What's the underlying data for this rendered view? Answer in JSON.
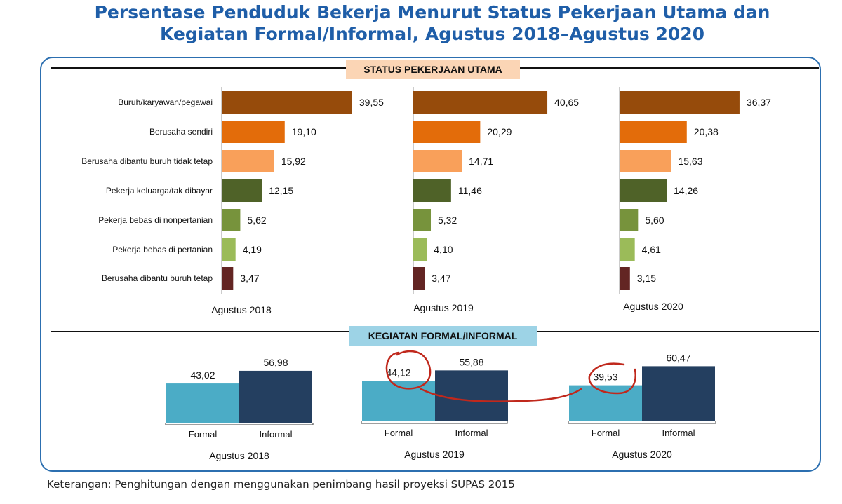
{
  "title": {
    "line1": "Persentase Penduduk Bekerja Menurut Status Pekerjaan Utama dan",
    "line2": "Kegiatan Formal/Informal, Agustus 2018–Agustus 2020"
  },
  "sections": {
    "status_label": "STATUS PEKERJAAN UTAMA",
    "formal_label": "KEGIATAN FORMAL/INFORMAL"
  },
  "caption": "Keterangan: Penghitungan dengan menggunakan penimbang hasil proyeksi SUPAS 2015",
  "colors": {
    "title": "#1f5ea8",
    "frame": "#2c6fb0",
    "status": [
      "#964b0b",
      "#e36c0a",
      "#f9a05a",
      "#4f6228",
      "#77933c",
      "#9bbb59",
      "#632523"
    ],
    "formal": "#4bacc6",
    "informal": "#243f60",
    "annotation": "#c0281c"
  },
  "chart_data": [
    {
      "type": "bar",
      "orientation": "horizontal",
      "title": "STATUS PEKERJAAN UTAMA",
      "categories": [
        "Buruh/karyawan/pegawai",
        "Berusaha sendiri",
        "Berusaha dibantu buruh tidak tetap",
        "Pekerja keluarga/tak dibayar",
        "Pekerja bebas di nonpertanian",
        "Pekerja bebas di pertanian",
        "Berusaha dibantu buruh tetap"
      ],
      "panels": [
        {
          "label": "Agustus 2018",
          "values": [
            39.55,
            19.1,
            15.92,
            12.15,
            5.62,
            4.19,
            3.47
          ],
          "labels": [
            "39,55",
            "19,10",
            "15,92",
            "12,15",
            "5,62",
            "4,19",
            "3,47"
          ]
        },
        {
          "label": "Agustus 2019",
          "values": [
            40.65,
            20.29,
            14.71,
            11.46,
            5.32,
            4.1,
            3.47
          ],
          "labels": [
            "40,65",
            "20,29",
            "14,71",
            "11,46",
            "5,32",
            "4,10",
            "3,47"
          ]
        },
        {
          "label": "Agustus 2020",
          "values": [
            36.37,
            20.38,
            15.63,
            14.26,
            5.6,
            4.61,
            3.15
          ],
          "labels": [
            "36,37",
            "20,38",
            "15,63",
            "14,26",
            "5,60",
            "4,61",
            "3,15"
          ]
        }
      ],
      "unit": "%"
    },
    {
      "type": "bar",
      "orientation": "vertical",
      "title": "KEGIATAN FORMAL/INFORMAL",
      "categories": [
        "Formal",
        "Informal"
      ],
      "panels": [
        {
          "label": "Agustus 2018",
          "values": [
            43.02,
            56.98
          ],
          "labels": [
            "43,02",
            "56,98"
          ]
        },
        {
          "label": "Agustus 2019",
          "values": [
            44.12,
            55.88
          ],
          "labels": [
            "44,12",
            "55,88"
          ]
        },
        {
          "label": "Agustus 2020",
          "values": [
            39.53,
            60.47
          ],
          "labels": [
            "39,53",
            "60,47"
          ]
        }
      ],
      "unit": "%",
      "annotation": "hand-drawn red circles on 44,12 and 39,53 connected by a curved line"
    }
  ]
}
